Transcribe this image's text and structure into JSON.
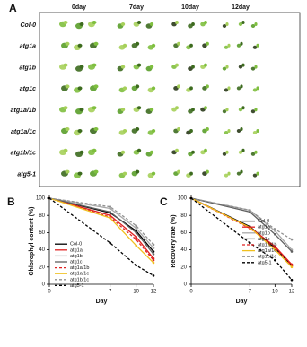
{
  "panel_a": {
    "label": "A",
    "columns": [
      "0day",
      "7day",
      "10day",
      "12day"
    ],
    "rows": [
      "Col-0",
      "atg1a",
      "atg1b",
      "atg1c",
      "atg1a/1b",
      "atg1a/1c",
      "atg1b/1c",
      "atg5-1"
    ]
  },
  "chart_data": [
    {
      "type": "line",
      "panel_label": "B",
      "ylabel": "Chlorophyl content (%)",
      "xlabel": "Day",
      "x": [
        0,
        7,
        10,
        12
      ],
      "xlim": [
        0,
        12
      ],
      "xticks": [
        0,
        7,
        10,
        12
      ],
      "ylim": [
        0,
        100
      ],
      "yticks": [
        0,
        20,
        40,
        60,
        80,
        100
      ],
      "legend": "lower left",
      "series": [
        {
          "name": "Col-0",
          "color": "#000000",
          "style": "solid",
          "values": [
            100,
            83,
            62,
            38
          ]
        },
        {
          "name": "atg1a",
          "color": "#e02020",
          "style": "solid",
          "values": [
            100,
            80,
            55,
            30
          ]
        },
        {
          "name": "atg1b",
          "color": "#a8a8a8",
          "style": "solid",
          "values": [
            100,
            88,
            65,
            42
          ]
        },
        {
          "name": "atg1c",
          "color": "#606060",
          "style": "solid",
          "values": [
            100,
            84,
            60,
            35
          ]
        },
        {
          "name": "atg1a/1b",
          "color": "#e02020",
          "style": "dashed",
          "values": [
            100,
            78,
            52,
            28
          ]
        },
        {
          "name": "atg1a/1c",
          "color": "#f0c020",
          "style": "solid",
          "values": [
            100,
            77,
            45,
            25
          ]
        },
        {
          "name": "atg1b/1c",
          "color": "#909090",
          "style": "dashed",
          "values": [
            100,
            90,
            68,
            46
          ]
        },
        {
          "name": "atg5-1",
          "color": "#000000",
          "style": "dashed",
          "values": [
            100,
            48,
            22,
            10
          ]
        }
      ]
    },
    {
      "type": "line",
      "panel_label": "C",
      "ylabel": "Recovery rate (%)",
      "xlabel": "Day",
      "x": [
        0,
        7,
        10,
        12
      ],
      "xlim": [
        0,
        12
      ],
      "xticks": [
        0,
        7,
        10,
        12
      ],
      "ylim": [
        0,
        100
      ],
      "yticks": [
        0,
        20,
        40,
        60,
        80,
        100
      ],
      "legend": "center right",
      "series": [
        {
          "name": "Col-0",
          "color": "#000000",
          "style": "solid",
          "values": [
            100,
            67,
            42,
            22
          ]
        },
        {
          "name": "atg1a",
          "color": "#e02020",
          "style": "solid",
          "values": [
            100,
            66,
            44,
            23
          ]
        },
        {
          "name": "atg1b",
          "color": "#a8a8a8",
          "style": "solid",
          "values": [
            100,
            86,
            62,
            40
          ]
        },
        {
          "name": "atg1c",
          "color": "#606060",
          "style": "solid",
          "values": [
            100,
            84,
            58,
            38
          ]
        },
        {
          "name": "atg1a/1b",
          "color": "#e02020",
          "style": "dashed",
          "values": [
            100,
            65,
            42,
            22
          ]
        },
        {
          "name": "atg1a/1c",
          "color": "#f0c020",
          "style": "solid",
          "values": [
            100,
            66,
            40,
            20
          ]
        },
        {
          "name": "atg1b/1c",
          "color": "#909090",
          "style": "dashed",
          "values": [
            100,
            86,
            64,
            52
          ]
        },
        {
          "name": "atg5-1",
          "color": "#000000",
          "style": "dashed",
          "values": [
            100,
            48,
            28,
            5
          ]
        }
      ]
    }
  ]
}
